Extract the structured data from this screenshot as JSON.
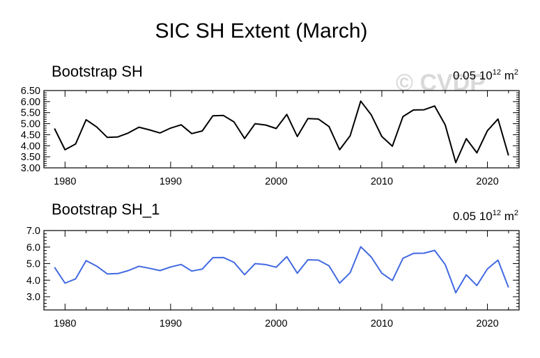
{
  "figure": {
    "title": "SIC SH Extent (March)",
    "watermark": "© CVDP"
  },
  "chart_data": [
    {
      "type": "line",
      "title": "Bootstrap SH",
      "units": {
        "value": "0.05",
        "base": "10",
        "exponent": "12",
        "unit": "m",
        "unit_exponent": "2"
      },
      "line_color": "#000000",
      "xlim": [
        1978,
        2023
      ],
      "ylim": [
        3.0,
        6.5
      ],
      "x_ticks": [
        1980,
        1990,
        2000,
        2010,
        2020
      ],
      "x_tick_labels": [
        "1980",
        "1990",
        "2000",
        "2010",
        "2020"
      ],
      "y_ticks": [
        3.0,
        3.5,
        4.0,
        4.5,
        5.0,
        5.5,
        6.0,
        6.5
      ],
      "y_tick_labels": [
        "3.00",
        "3.50",
        "4.00",
        "4.50",
        "5.00",
        "5.50",
        "6.00",
        "6.50"
      ],
      "x": [
        1979,
        1980,
        1981,
        1982,
        1983,
        1984,
        1985,
        1986,
        1987,
        1988,
        1989,
        1990,
        1991,
        1992,
        1993,
        1994,
        1995,
        1996,
        1997,
        1998,
        1999,
        2000,
        2001,
        2002,
        2003,
        2004,
        2005,
        2006,
        2007,
        2008,
        2009,
        2010,
        2011,
        2012,
        2013,
        2014,
        2015,
        2016,
        2017,
        2018,
        2019,
        2020,
        2021,
        2022
      ],
      "values": [
        4.78,
        3.82,
        4.08,
        5.18,
        4.85,
        4.38,
        4.4,
        4.58,
        4.84,
        4.72,
        4.58,
        4.8,
        4.95,
        4.55,
        4.67,
        5.36,
        5.37,
        5.08,
        4.33,
        5.0,
        4.94,
        4.78,
        5.42,
        4.42,
        5.23,
        5.21,
        4.87,
        3.82,
        4.45,
        6.02,
        5.4,
        4.42,
        3.98,
        5.32,
        5.62,
        5.63,
        5.8,
        4.95,
        3.24,
        4.32,
        3.68,
        4.68,
        5.21,
        3.56
      ]
    },
    {
      "type": "line",
      "title": "Bootstrap SH_1",
      "units": {
        "value": "0.05",
        "base": "10",
        "exponent": "12",
        "unit": "m",
        "unit_exponent": "2"
      },
      "line_color": "#4169e1",
      "xlim": [
        1978,
        2023
      ],
      "ylim": [
        2.2,
        7.0
      ],
      "x_ticks": [
        1980,
        1990,
        2000,
        2010,
        2020
      ],
      "x_tick_labels": [
        "1980",
        "1990",
        "2000",
        "2010",
        "2020"
      ],
      "y_ticks": [
        3.0,
        4.0,
        5.0,
        6.0,
        7.0
      ],
      "y_tick_labels": [
        "3.0",
        "4.0",
        "5.0",
        "6.0",
        "7.0"
      ],
      "x": [
        1979,
        1980,
        1981,
        1982,
        1983,
        1984,
        1985,
        1986,
        1987,
        1988,
        1989,
        1990,
        1991,
        1992,
        1993,
        1994,
        1995,
        1996,
        1997,
        1998,
        1999,
        2000,
        2001,
        2002,
        2003,
        2004,
        2005,
        2006,
        2007,
        2008,
        2009,
        2010,
        2011,
        2012,
        2013,
        2014,
        2015,
        2016,
        2017,
        2018,
        2019,
        2020,
        2021,
        2022
      ],
      "values": [
        4.78,
        3.82,
        4.08,
        5.18,
        4.85,
        4.38,
        4.4,
        4.58,
        4.84,
        4.72,
        4.58,
        4.8,
        4.95,
        4.55,
        4.67,
        5.36,
        5.37,
        5.08,
        4.33,
        5.0,
        4.94,
        4.78,
        5.42,
        4.42,
        5.23,
        5.21,
        4.87,
        3.82,
        4.45,
        6.02,
        5.4,
        4.42,
        3.98,
        5.32,
        5.62,
        5.63,
        5.8,
        4.95,
        3.24,
        4.32,
        3.68,
        4.68,
        5.21,
        3.56
      ]
    }
  ]
}
